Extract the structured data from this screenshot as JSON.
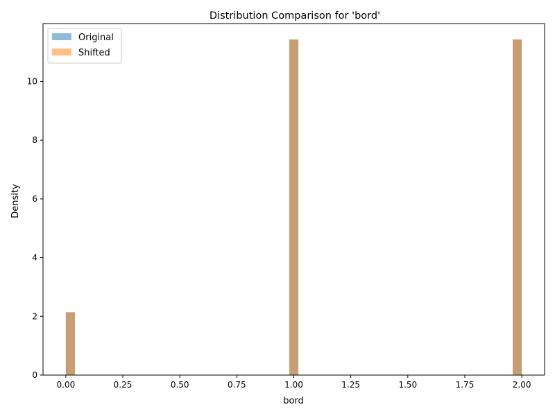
{
  "chart_data": {
    "type": "histogram",
    "title": "Distribution Comparison for 'bord'",
    "xlabel": "bord",
    "ylabel": "Density",
    "xlim": [
      -0.1,
      2.1
    ],
    "ylim": [
      0,
      11.97
    ],
    "xticks": [
      "0.00",
      "0.25",
      "0.50",
      "0.75",
      "1.00",
      "1.25",
      "1.50",
      "1.75",
      "2.00"
    ],
    "yticks": [
      "0",
      "2",
      "4",
      "6",
      "8",
      "10"
    ],
    "bin_width": 0.04,
    "grid": false,
    "legend_position": "top-left",
    "series": [
      {
        "name": "Original",
        "color": "#1f77b4",
        "alpha": 0.5,
        "bins": [
          {
            "x0": 0.0,
            "x1": 0.04,
            "density": 2.14
          },
          {
            "x0": 0.98,
            "x1": 1.02,
            "density": 11.43
          },
          {
            "x0": 1.96,
            "x1": 2.0,
            "density": 11.43
          }
        ]
      },
      {
        "name": "Shifted",
        "color": "#ff7f0e",
        "alpha": 0.5,
        "bins": [
          {
            "x0": 0.0,
            "x1": 0.04,
            "density": 2.14
          },
          {
            "x0": 0.98,
            "x1": 1.02,
            "density": 11.43
          },
          {
            "x0": 1.96,
            "x1": 2.0,
            "density": 11.43
          }
        ]
      }
    ]
  }
}
